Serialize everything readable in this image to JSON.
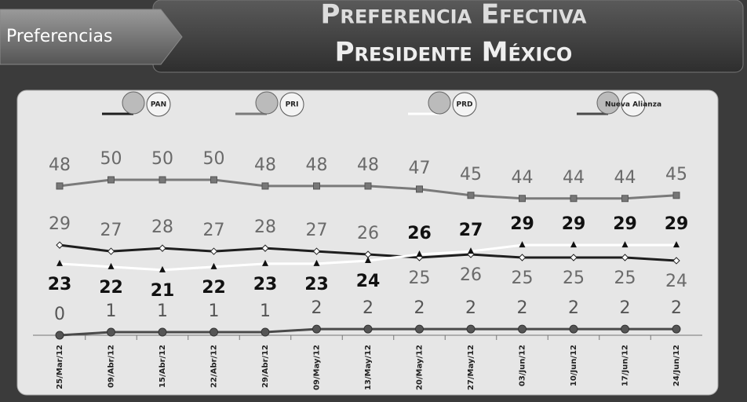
{
  "section": "Preferencias",
  "chart_data": {
    "type": "line",
    "title": "Preferencia Efectiva",
    "subtitle": "Presidente México",
    "categories": [
      "25/Mar/12",
      "09/Abr/12",
      "15/Abr/12",
      "22/Abr/12",
      "29/Abr/12",
      "09/May/12",
      "13/May/12",
      "20/May/12",
      "27/May/12",
      "03/Jun/12",
      "10/Jun/12",
      "17/Jun/12",
      "24/Jun/12"
    ],
    "series": [
      {
        "name": "PAN",
        "color": "#1e1e1e",
        "values": [
          29,
          27,
          28,
          27,
          28,
          27,
          26,
          25,
          26,
          25,
          25,
          25,
          24
        ]
      },
      {
        "name": "PRI",
        "color": "#7a7a7a",
        "values": [
          48,
          50,
          50,
          50,
          48,
          48,
          48,
          47,
          45,
          44,
          44,
          44,
          45
        ]
      },
      {
        "name": "PRD",
        "color": "#ffffff",
        "values": [
          23,
          22,
          21,
          22,
          23,
          23,
          24,
          26,
          27,
          29,
          29,
          29,
          29
        ]
      },
      {
        "name": "Nueva Alianza",
        "color": "#4a4a4a",
        "values": [
          0,
          1,
          1,
          1,
          1,
          2,
          2,
          2,
          2,
          2,
          2,
          2,
          2
        ]
      }
    ]
  }
}
